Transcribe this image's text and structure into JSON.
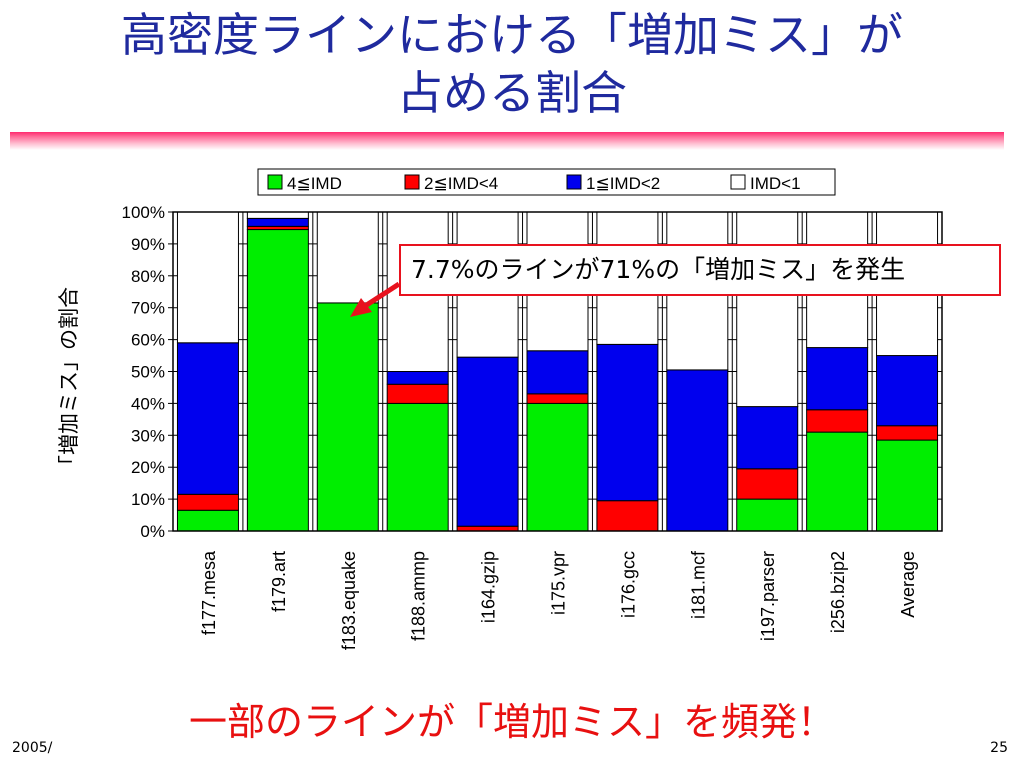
{
  "slide": {
    "title_line1": "高密度ラインにおける「増加ミス」が",
    "title_line2": "占める割合",
    "callout": "7.7%のラインが71%の「増加ミス」を発生",
    "bottom_note": "一部のラインが「増加ミス」を頻発！",
    "footer_date": "2005/",
    "page_number": "25"
  },
  "chart_data": {
    "type": "bar",
    "stacked": true,
    "percent": true,
    "ylabel": "「増加ミス」の割合",
    "ylim": [
      0,
      100
    ],
    "yticks": [
      "0%",
      "10%",
      "20%",
      "30%",
      "40%",
      "50%",
      "60%",
      "70%",
      "80%",
      "90%",
      "100%"
    ],
    "categories": [
      "f177.mesa",
      "f179.art",
      "f183.equake",
      "f188.ammp",
      "i164.gzip",
      "i175.vpr",
      "i176.gcc",
      "i181.mcf",
      "i197.parser",
      "i256.bzip2",
      "Average"
    ],
    "series": [
      {
        "name": "4≦IMD",
        "color": "#00ee00",
        "values": [
          6.5,
          94.5,
          71.5,
          40,
          0,
          40,
          0,
          0,
          10,
          31,
          28.5
        ]
      },
      {
        "name": "2≦IMD<4",
        "color": "#ff0000",
        "values": [
          5,
          1,
          0,
          6,
          1.5,
          3,
          9.5,
          0,
          9.5,
          7,
          4.5
        ]
      },
      {
        "name": "1≦IMD<2",
        "color": "#0000ee",
        "values": [
          47.5,
          2.5,
          0,
          4,
          53,
          13.5,
          49,
          50.5,
          19.5,
          19.5,
          22
        ]
      },
      {
        "name": "IMD<1",
        "color": "#ffffff",
        "values": [
          41,
          2,
          28.5,
          50,
          45.5,
          43.5,
          41.5,
          49.5,
          61,
          42.5,
          45
        ]
      }
    ],
    "legend_position": "top",
    "grid": true
  }
}
